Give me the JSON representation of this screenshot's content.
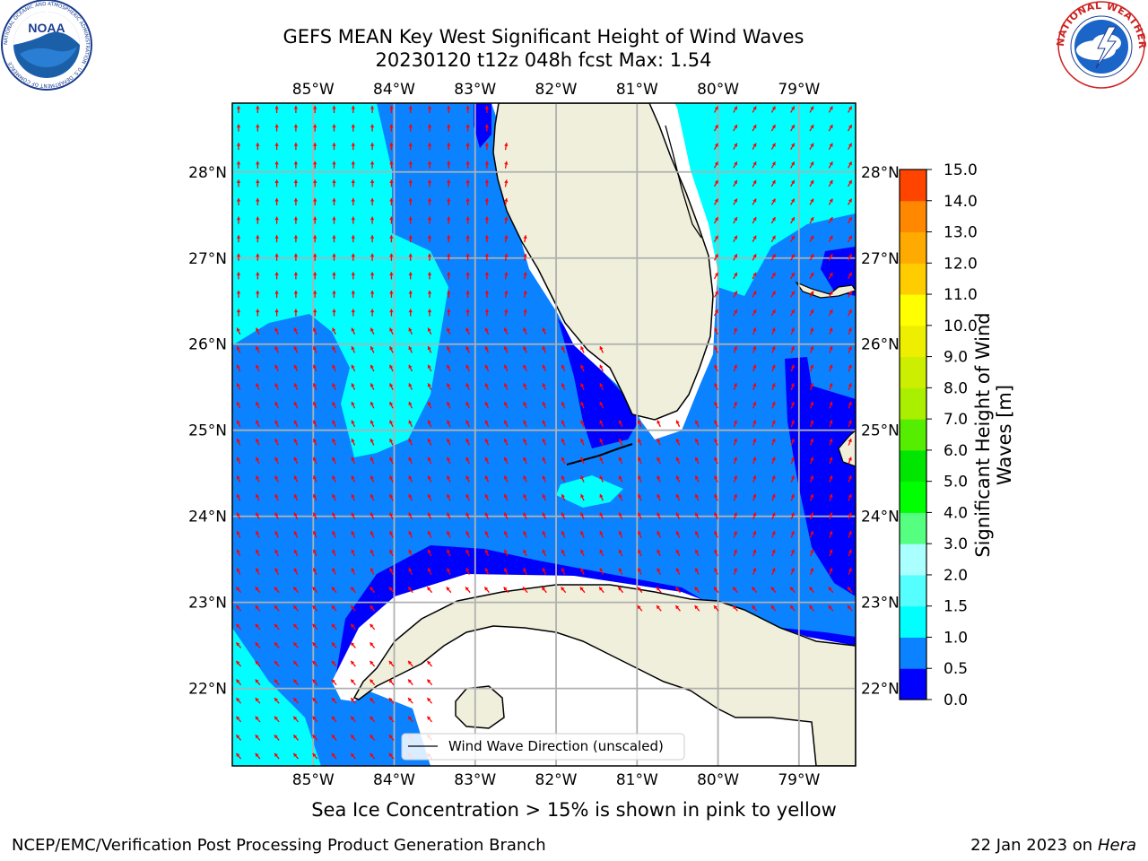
{
  "title": {
    "line1": "GEFS MEAN Key West Significant Height of Wind Waves",
    "line2": "20230120 t12z 048h fcst   Max: 1.54"
  },
  "logos": {
    "left": {
      "text": "NOAA",
      "icon": "noaa-logo",
      "ring_text": "NATIONAL OCEANIC AND ATMOSPHERIC ADMINISTRATION · U.S. DEPARTMENT OF COMMERCE"
    },
    "right": {
      "icon": "nws-logo",
      "ring_text": "NATIONAL WEATHER SERVICE"
    }
  },
  "map": {
    "lon_ticks": [
      "85°W",
      "84°W",
      "83°W",
      "82°W",
      "81°W",
      "80°W",
      "79°W"
    ],
    "lat_ticks": [
      "28°N",
      "27°N",
      "26°N",
      "25°N",
      "24°N",
      "23°N",
      "22°N"
    ],
    "extent": {
      "lon": [
        -86.0,
        -78.3
      ],
      "lat": [
        21.1,
        28.8
      ]
    },
    "legend_label": "Wind Wave Direction (unscaled)",
    "arrow_color": "#ff0000",
    "land_color": "#efefdb",
    "grid": true
  },
  "colorbar": {
    "label": "Significant Height of Wind Waves [m]",
    "ticks": [
      "0.0",
      "0.5",
      "1.0",
      "1.5",
      "2.0",
      "3.0",
      "4.0",
      "5.0",
      "6.0",
      "7.0",
      "8.0",
      "9.0",
      "10.0",
      "11.0",
      "12.0",
      "13.0",
      "14.0",
      "15.0"
    ],
    "colors": [
      "#0000ff",
      "#0b82ff",
      "#00ffff",
      "#55ffff",
      "#aaffff",
      "#55ff80",
      "#00ff00",
      "#00e600",
      "#55ee00",
      "#aaee00",
      "#ccee00",
      "#eeee00",
      "#ffff00",
      "#ffcc00",
      "#ffaa00",
      "#ff8800",
      "#ff4400",
      "#ff0000"
    ]
  },
  "footer": {
    "ice_note": "Sea Ice Concentration > 15% is shown in pink to yellow",
    "left": "NCEP/EMC/Verification Post Processing Product Generation Branch",
    "right_date": "22 Jan 2023 on ",
    "right_machine": "Hera"
  }
}
